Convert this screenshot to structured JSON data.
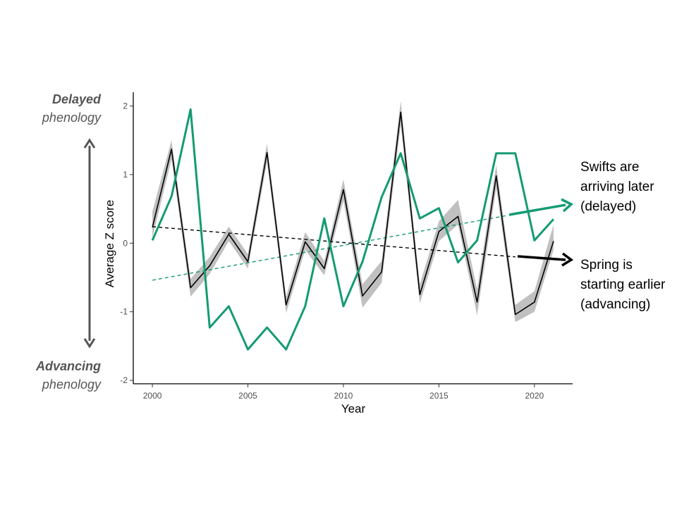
{
  "chart_data": {
    "type": "line",
    "title": "",
    "xlabel": "Year",
    "ylabel": "Average Z score",
    "xlim": [
      1999.0,
      2022.0
    ],
    "ylim": [
      -2.05,
      2.2
    ],
    "xticks": [
      2000,
      2005,
      2010,
      2015,
      2020
    ],
    "yticks": [
      -2,
      -1,
      0,
      1,
      2
    ],
    "xtick_labels": [
      "2000",
      "2005",
      "2010",
      "2015",
      "2020"
    ],
    "ytick_labels": [
      "-2",
      "-1",
      "0",
      "1",
      "2"
    ],
    "grid": false,
    "series": [
      {
        "color": "#000000",
        "band_color": "#bdbdbd",
        "x": [
          2000,
          2001,
          2002,
          2003,
          2004,
          2005,
          2006,
          2007,
          2008,
          2009,
          2010,
          2011,
          2012,
          2013,
          2014,
          2015,
          2016,
          2017,
          2018,
          2019,
          2020,
          2021
        ],
        "y": [
          0.23,
          1.37,
          -0.65,
          -0.33,
          0.13,
          -0.27,
          1.32,
          -0.9,
          0.02,
          -0.37,
          0.78,
          -0.77,
          -0.42,
          1.91,
          -0.75,
          0.17,
          0.39,
          -0.86,
          0.98,
          -1.04,
          -0.86,
          0.03
        ],
        "band_lower": [
          0.08,
          1.22,
          -0.78,
          -0.45,
          0.03,
          -0.37,
          1.18,
          -1.02,
          -0.1,
          -0.47,
          0.62,
          -0.94,
          -0.58,
          1.72,
          -0.88,
          0.03,
          0.27,
          -1.05,
          0.8,
          -1.15,
          -1.0,
          -0.1
        ],
        "band_upper": [
          0.46,
          1.5,
          -0.52,
          -0.2,
          0.24,
          -0.16,
          1.45,
          -0.78,
          0.16,
          -0.26,
          0.93,
          -0.6,
          -0.26,
          2.07,
          -0.6,
          0.32,
          0.63,
          -0.67,
          1.14,
          -0.9,
          -0.7,
          0.27
        ],
        "trend": {
          "x": [
            2000,
            2019
          ],
          "y": [
            0.24,
            -0.2
          ],
          "color": "#000000"
        }
      },
      {
        "color": "#149b72",
        "x": [
          2000,
          2001,
          2002,
          2003,
          2004,
          2005,
          2006,
          2007,
          2008,
          2009,
          2010,
          2011,
          2012,
          2013,
          2014,
          2015,
          2016,
          2017,
          2018,
          2019,
          2020,
          2021
        ],
        "y": [
          0.04,
          0.68,
          1.95,
          -1.23,
          -0.92,
          -1.55,
          -1.23,
          -1.55,
          -0.92,
          0.36,
          -0.92,
          -0.27,
          0.67,
          1.31,
          0.36,
          0.51,
          -0.28,
          0.04,
          1.31,
          1.31,
          0.04,
          0.35
        ],
        "trend": {
          "x": [
            2000,
            2018.5
          ],
          "y": [
            -0.54,
            0.4
          ],
          "color": "#149b72"
        }
      }
    ]
  },
  "labels": {
    "delayed_bold": "Delayed",
    "delayed_ital": "phenology",
    "advancing_bold": "Advancing",
    "advancing_ital": "phenology",
    "swifts_line1": "Swifts are",
    "swifts_line2": "arriving later",
    "swifts_line3": "(delayed)",
    "spring_line1": "Spring is",
    "spring_line2": "starting earlier",
    "spring_line3": "(advancing)"
  },
  "colors": {
    "side_arrow": "#555555",
    "green": "#149b72",
    "black": "#000000"
  }
}
